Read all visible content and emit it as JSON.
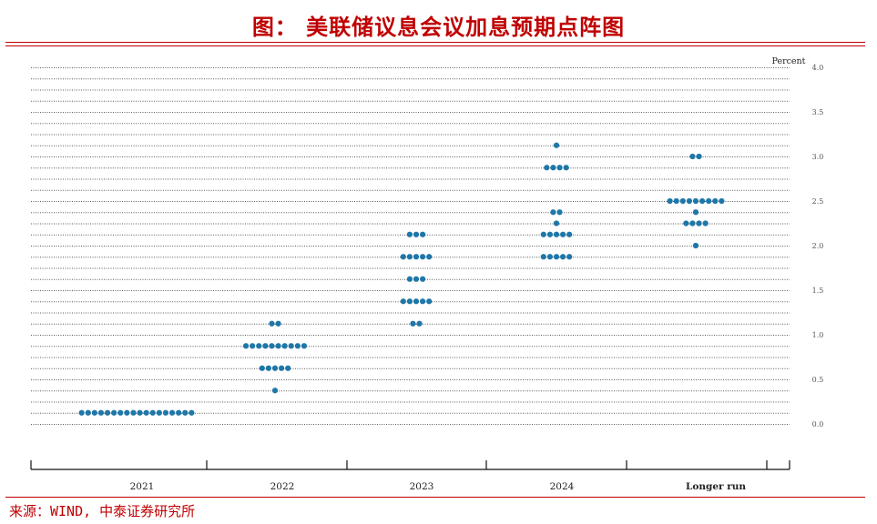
{
  "header": {
    "title": "图： 美联储议息会议加息预期点阵图"
  },
  "footer": {
    "source": "来源：WIND, 中泰证券研究所"
  },
  "colors": {
    "accent": "#c00000",
    "dot": "#1f77a8"
  },
  "chart_data": {
    "type": "scatter",
    "title": "",
    "ylabel": "Percent",
    "ylim": [
      0,
      4.0
    ],
    "yticks": [
      "0.0",
      "0.5",
      "1.0",
      "1.5",
      "2.0",
      "2.5",
      "3.0",
      "3.5",
      "4.0"
    ],
    "categories": [
      "2021",
      "2022",
      "2023",
      "2024",
      "Longer run"
    ],
    "grid": "dotted horizontal lines every 0.125",
    "series": [
      {
        "category": "2021",
        "points": [
          {
            "y": 0.125,
            "count": 18
          }
        ]
      },
      {
        "category": "2022",
        "points": [
          {
            "y": 1.125,
            "count": 2
          },
          {
            "y": 0.875,
            "count": 10
          },
          {
            "y": 0.625,
            "count": 5
          },
          {
            "y": 0.375,
            "count": 1
          }
        ]
      },
      {
        "category": "2023",
        "points": [
          {
            "y": 2.125,
            "count": 3
          },
          {
            "y": 1.875,
            "count": 5
          },
          {
            "y": 1.625,
            "count": 3
          },
          {
            "y": 1.375,
            "count": 5
          },
          {
            "y": 1.125,
            "count": 2
          }
        ]
      },
      {
        "category": "2024",
        "points": [
          {
            "y": 3.125,
            "count": 1
          },
          {
            "y": 2.875,
            "count": 4
          },
          {
            "y": 2.375,
            "count": 2
          },
          {
            "y": 2.25,
            "count": 1
          },
          {
            "y": 2.125,
            "count": 5
          },
          {
            "y": 1.875,
            "count": 5
          }
        ]
      },
      {
        "category": "Longer run",
        "points": [
          {
            "y": 3.0,
            "count": 2
          },
          {
            "y": 2.5,
            "count": 9
          },
          {
            "y": 2.375,
            "count": 1
          },
          {
            "y": 2.25,
            "count": 4
          },
          {
            "y": 2.0,
            "count": 1
          }
        ]
      }
    ]
  }
}
